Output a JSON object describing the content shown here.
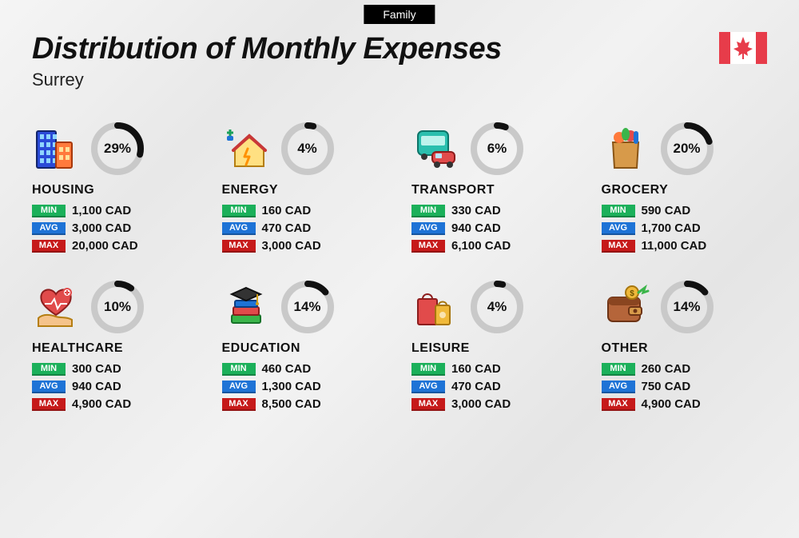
{
  "tag": "Family",
  "title": "Distribution of Monthly Expenses",
  "subtitle": "Surrey",
  "currency": "CAD",
  "labels": {
    "min": "MIN",
    "avg": "AVG",
    "max": "MAX"
  },
  "colors": {
    "min": "#1bb05a",
    "avg": "#1e73d6",
    "max": "#c61a1a",
    "ring_track": "#c9c9c9",
    "ring_fill": "#111111",
    "flag_red": "#e73c4a",
    "text": "#111111"
  },
  "ring": {
    "size": 66,
    "stroke": 8
  },
  "flag": {
    "width": 60,
    "height": 40
  },
  "categories": [
    {
      "key": "housing",
      "name": "HOUSING",
      "pct": 29,
      "min": "1,100",
      "avg": "3,000",
      "max": "20,000",
      "icon": "buildings"
    },
    {
      "key": "energy",
      "name": "ENERGY",
      "pct": 4,
      "min": "160",
      "avg": "470",
      "max": "3,000",
      "icon": "energy-house"
    },
    {
      "key": "transport",
      "name": "TRANSPORT",
      "pct": 6,
      "min": "330",
      "avg": "940",
      "max": "6,100",
      "icon": "bus-car"
    },
    {
      "key": "grocery",
      "name": "GROCERY",
      "pct": 20,
      "min": "590",
      "avg": "1,700",
      "max": "11,000",
      "icon": "grocery-bag"
    },
    {
      "key": "healthcare",
      "name": "HEALTHCARE",
      "pct": 10,
      "min": "300",
      "avg": "940",
      "max": "4,900",
      "icon": "heart-hand"
    },
    {
      "key": "education",
      "name": "EDUCATION",
      "pct": 14,
      "min": "460",
      "avg": "1,300",
      "max": "8,500",
      "icon": "grad-books"
    },
    {
      "key": "leisure",
      "name": "LEISURE",
      "pct": 4,
      "min": "160",
      "avg": "470",
      "max": "3,000",
      "icon": "shopping-bags"
    },
    {
      "key": "other",
      "name": "OTHER",
      "pct": 14,
      "min": "260",
      "avg": "750",
      "max": "4,900",
      "icon": "wallet"
    }
  ]
}
